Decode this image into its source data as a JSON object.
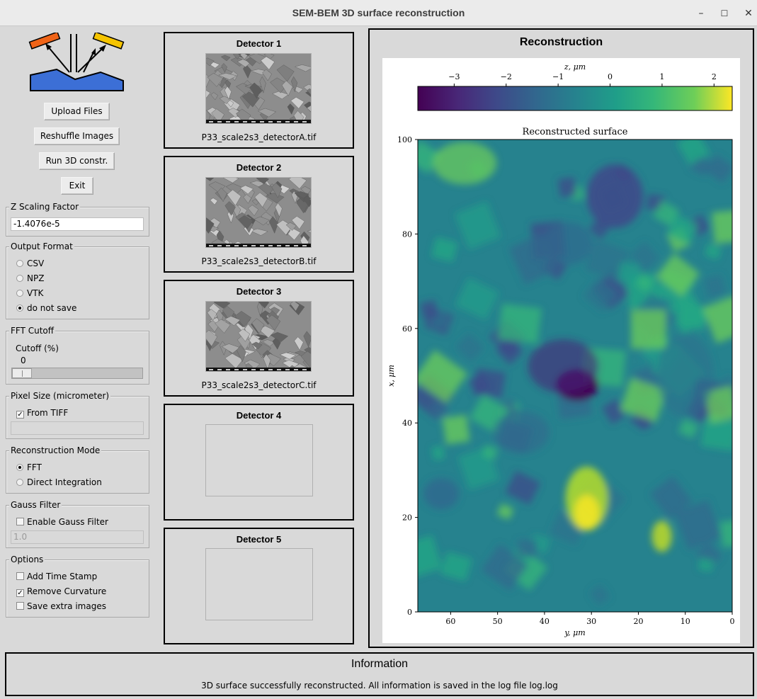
{
  "window": {
    "title": "SEM-BEM 3D surface reconstruction",
    "minimize": "–",
    "maximize": "☐",
    "close": "✕"
  },
  "buttons": {
    "upload": "Upload Files",
    "reshuffle": "Reshuffle Images",
    "run": "Run 3D constr.",
    "exit": "Exit"
  },
  "z_scaling": {
    "title": "Z Scaling Factor",
    "value": "-1.4076e-5"
  },
  "output_format": {
    "title": "Output Format",
    "options": [
      "CSV",
      "NPZ",
      "VTK",
      "do not save"
    ],
    "selected": "do not save"
  },
  "fft_cutoff": {
    "title": "FFT Cutoff",
    "label": "Cutoff (%)",
    "value": "0",
    "fraction": 0
  },
  "pixel_size": {
    "title": "Pixel Size (micrometer)",
    "from_tiff_label": "From TIFF",
    "from_tiff_checked": true,
    "value": ""
  },
  "reconstruction_mode": {
    "title": "Reconstruction Mode",
    "options": [
      "FFT",
      "Direct Integration"
    ],
    "selected": "FFT"
  },
  "gauss_filter": {
    "title": "Gauss Filter",
    "enable_label": "Enable Gauss Filter",
    "enabled": false,
    "value": "1.0"
  },
  "options": {
    "title": "Options",
    "items": [
      {
        "label": "Add Time Stamp",
        "checked": false
      },
      {
        "label": "Remove Curvature",
        "checked": true
      },
      {
        "label": "Save extra images",
        "checked": false
      }
    ]
  },
  "detectors": [
    {
      "title": "Detector 1",
      "file": "P33_scale2s3_detectorA.tif",
      "has_image": true
    },
    {
      "title": "Detector 2",
      "file": "P33_scale2s3_detectorB.tif",
      "has_image": true
    },
    {
      "title": "Detector 3",
      "file": "P33_scale2s3_detectorC.tif",
      "has_image": true
    },
    {
      "title": "Detector 4",
      "file": "",
      "has_image": false
    },
    {
      "title": "Detector 5",
      "file": "",
      "has_image": false
    }
  ],
  "reconstruction": {
    "title": "Reconstruction"
  },
  "chart_data": {
    "type": "heatmap",
    "title": "Reconstructed surface",
    "xlabel": "y, μm",
    "ylabel": "x, μm",
    "x_ticks": [
      60,
      50,
      40,
      30,
      20,
      10,
      0
    ],
    "y_ticks": [
      0,
      20,
      40,
      60,
      80,
      100
    ],
    "xlim": [
      67,
      0
    ],
    "ylim": [
      0,
      100
    ],
    "colorbar": {
      "label": "z, μm",
      "ticks": [
        -3,
        -2,
        -1,
        0,
        1,
        2
      ],
      "range": [
        -3.7,
        2.35
      ],
      "colormap": "viridis",
      "position": "top"
    }
  },
  "info": {
    "title": "Information",
    "message": "3D surface successfully reconstructed. All information is saved in the log file log.log"
  }
}
